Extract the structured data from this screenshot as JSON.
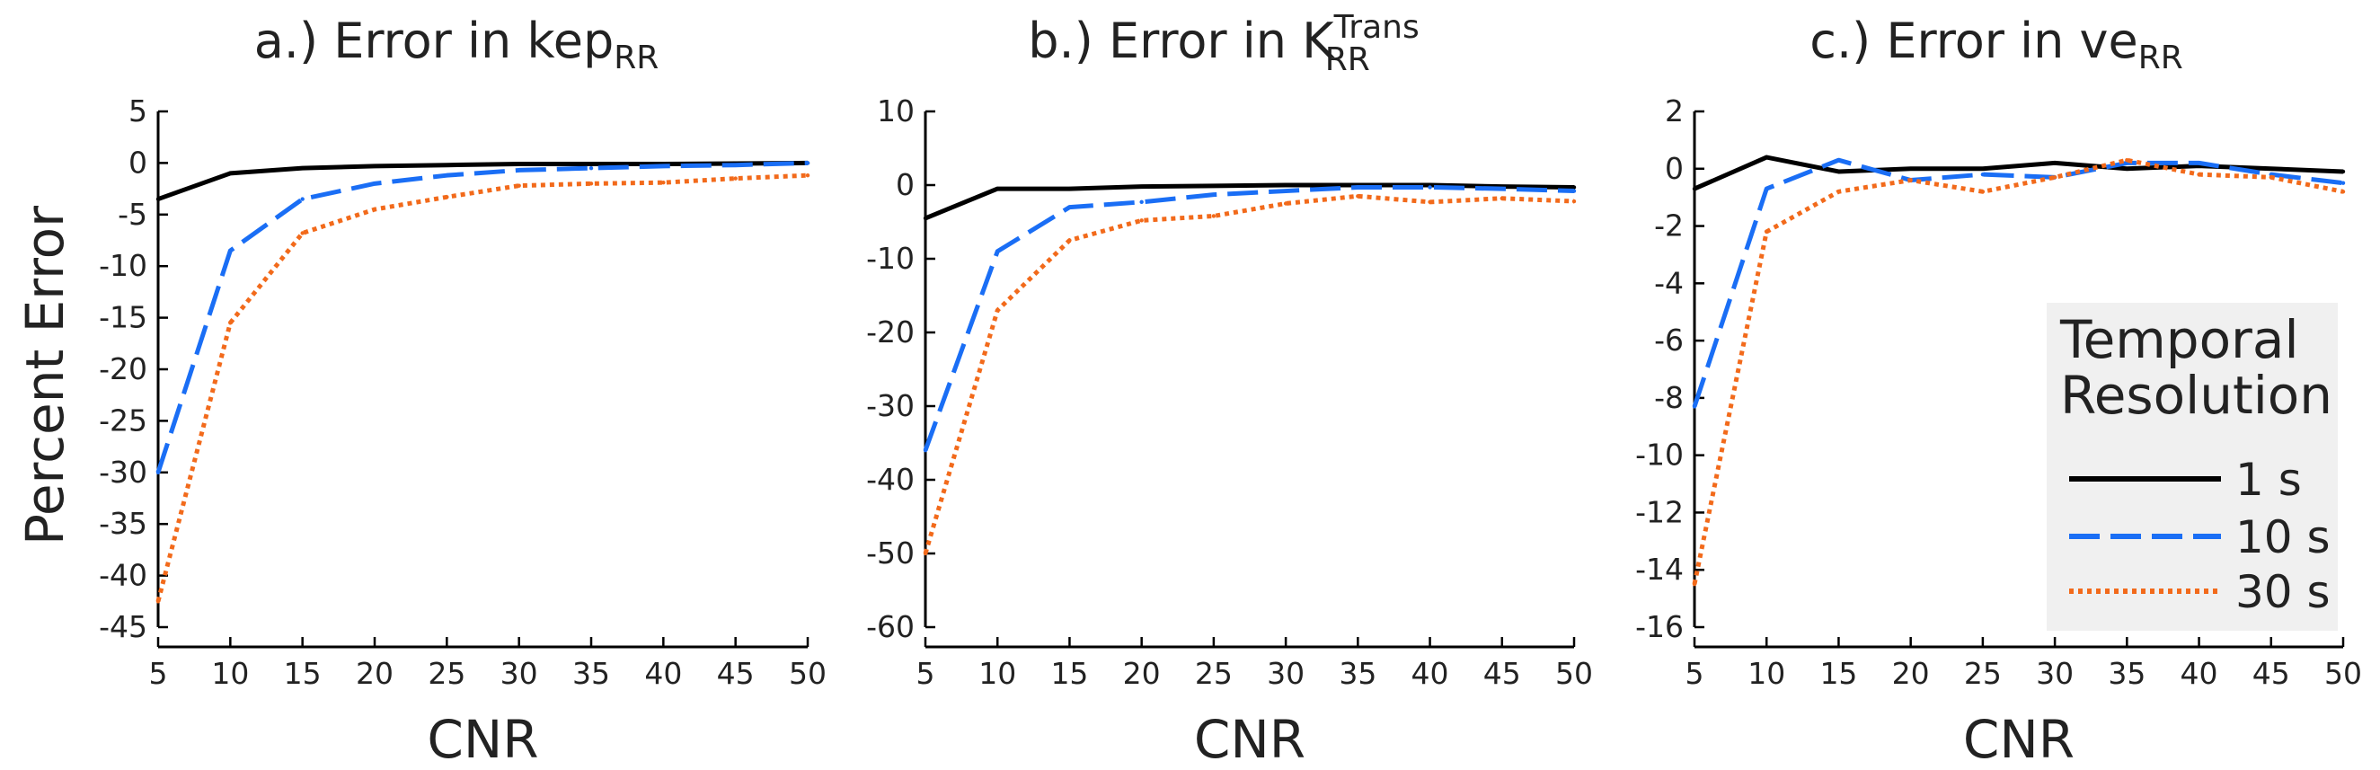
{
  "figure": {
    "ylabel": "Percent Error",
    "legend": {
      "title_line1": "Temporal",
      "title_line2": "Resolution",
      "placement": "inside lower-right of panel c",
      "background": "#f0f0f0",
      "entries": [
        {
          "label": "1 s",
          "color": "#000000",
          "dash": "solid"
        },
        {
          "label": "10 s",
          "color": "#1a6ef5",
          "dash": "dashed"
        },
        {
          "label": "30 s",
          "color": "#f26a1b",
          "dash": "dotted"
        }
      ]
    }
  },
  "chart_data": [
    {
      "type": "line",
      "title_prefix": "a.) Error in kep",
      "title_sub": "RR",
      "title_sup": "",
      "xlabel": "CNR",
      "ylabel": "Percent Error",
      "x": [
        5,
        10,
        15,
        20,
        25,
        30,
        35,
        40,
        45,
        50
      ],
      "xticks": [
        5,
        10,
        15,
        20,
        25,
        30,
        35,
        40,
        45,
        50
      ],
      "xlim": [
        5,
        50
      ],
      "ylim": [
        -45,
        5
      ],
      "yticks": [
        5,
        0,
        -5,
        -10,
        -15,
        -20,
        -25,
        -30,
        -35,
        -40,
        -45
      ],
      "grid": false,
      "series": [
        {
          "name": "1 s",
          "values": [
            -3.5,
            -1.0,
            -0.5,
            -0.3,
            -0.2,
            -0.1,
            -0.1,
            -0.1,
            -0.05,
            0.0
          ]
        },
        {
          "name": "10 s",
          "values": [
            -30.0,
            -8.5,
            -3.5,
            -2.0,
            -1.2,
            -0.7,
            -0.5,
            -0.3,
            -0.2,
            0.0
          ]
        },
        {
          "name": "30 s",
          "values": [
            -42.5,
            -15.5,
            -6.8,
            -4.5,
            -3.3,
            -2.2,
            -2.0,
            -1.9,
            -1.5,
            -1.2
          ]
        }
      ]
    },
    {
      "type": "line",
      "title_prefix": "b.) Error in K",
      "title_sub": "RR",
      "title_sup": "Trans",
      "xlabel": "CNR",
      "ylabel": "",
      "x": [
        5,
        10,
        15,
        20,
        25,
        30,
        35,
        40,
        45,
        50
      ],
      "xticks": [
        5,
        10,
        15,
        20,
        25,
        30,
        35,
        40,
        45,
        50
      ],
      "xlim": [
        5,
        50
      ],
      "ylim": [
        -60,
        10
      ],
      "yticks": [
        10,
        0,
        -10,
        -20,
        -30,
        -40,
        -50,
        -60
      ],
      "grid": false,
      "series": [
        {
          "name": "1 s",
          "values": [
            -4.5,
            -0.5,
            -0.5,
            -0.2,
            -0.1,
            0.0,
            0.0,
            0.0,
            -0.2,
            -0.3
          ]
        },
        {
          "name": "10 s",
          "values": [
            -36.0,
            -9.0,
            -3.0,
            -2.3,
            -1.3,
            -0.8,
            -0.3,
            -0.3,
            -0.5,
            -0.8
          ]
        },
        {
          "name": "30 s",
          "values": [
            -50.0,
            -17.0,
            -7.5,
            -4.8,
            -4.2,
            -2.5,
            -1.5,
            -2.3,
            -1.8,
            -2.2
          ]
        }
      ]
    },
    {
      "type": "line",
      "title_prefix": "c.) Error in ve",
      "title_sub": "RR",
      "title_sup": "",
      "xlabel": "CNR",
      "ylabel": "",
      "x": [
        5,
        10,
        15,
        20,
        25,
        30,
        35,
        40,
        45,
        50
      ],
      "xticks": [
        5,
        10,
        15,
        20,
        25,
        30,
        35,
        40,
        45,
        50
      ],
      "xlim": [
        5,
        50
      ],
      "ylim": [
        -16,
        2
      ],
      "yticks": [
        2,
        0,
        -2,
        -4,
        -6,
        -8,
        -10,
        -12,
        -14,
        -16
      ],
      "grid": false,
      "series": [
        {
          "name": "1 s",
          "values": [
            -0.7,
            0.4,
            -0.1,
            0.0,
            0.0,
            0.2,
            0.0,
            0.1,
            0.0,
            -0.1
          ]
        },
        {
          "name": "10 s",
          "values": [
            -8.3,
            -0.7,
            0.3,
            -0.4,
            -0.2,
            -0.3,
            0.2,
            0.2,
            -0.2,
            -0.5
          ]
        },
        {
          "name": "30 s",
          "values": [
            -14.5,
            -2.2,
            -0.8,
            -0.4,
            -0.8,
            -0.3,
            0.3,
            -0.2,
            -0.3,
            -0.8
          ]
        }
      ]
    }
  ]
}
